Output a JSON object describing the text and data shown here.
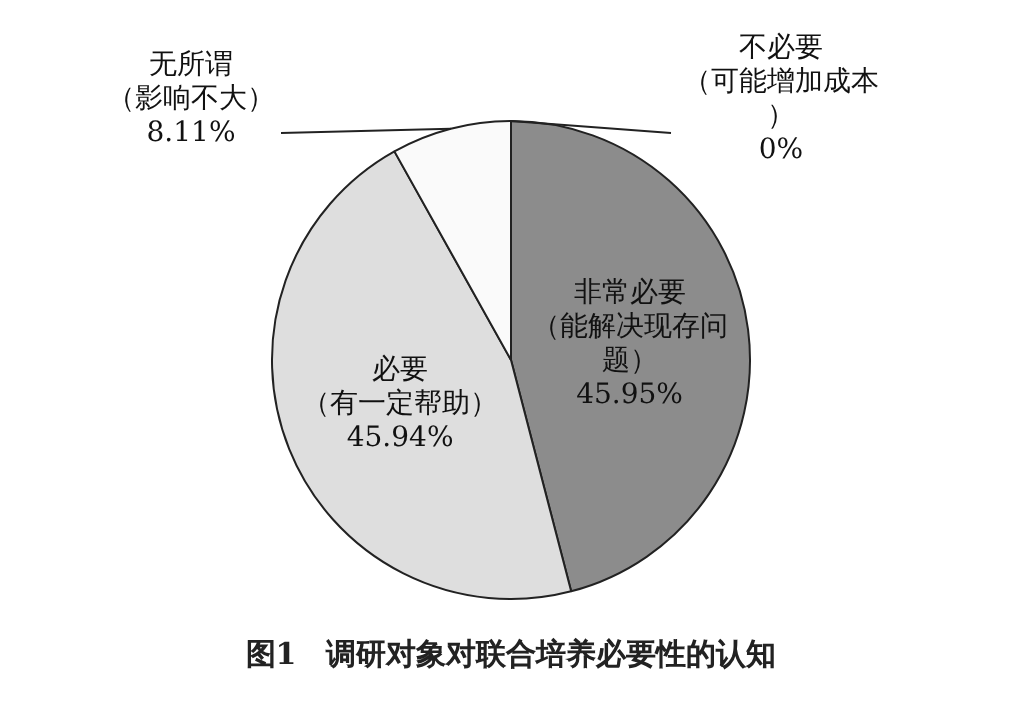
{
  "chart_data": {
    "type": "pie",
    "title": "图1　调研对象对联合培养必要性的认知",
    "categories": [
      "非常必要（能解决现存问题）",
      "必要（有一定帮助）",
      "无所谓（影响不大）",
      "不必要（可能增加成本）"
    ],
    "values": [
      45.95,
      45.94,
      8.11,
      0
    ],
    "colors": [
      "#8c8c8c",
      "#dedede",
      "#fafafa",
      "#ffffff"
    ],
    "value_labels": [
      "45.95%",
      "45.94%",
      "8.11%",
      "0%"
    ],
    "legend": false
  }
}
